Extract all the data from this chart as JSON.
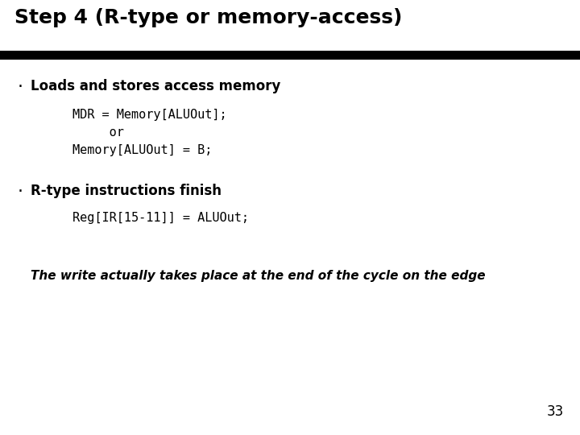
{
  "title": "Step 4 (R-type or memory-access)",
  "background_color": "#ffffff",
  "title_color": "#000000",
  "title_fontsize": 18,
  "separator_color": "#000000",
  "bullet1_text": "Loads and stores access memory",
  "bullet1_fontsize": 12,
  "code1_lines": [
    "MDR = Memory[ALUOut];",
    "     or",
    "Memory[ALUOut] = B;"
  ],
  "code1_fontsize": 11,
  "bullet2_text": "R-type instructions finish",
  "bullet2_fontsize": 12,
  "code2_lines": [
    "Reg[IR[15-11]] = ALUOut;"
  ],
  "code2_fontsize": 11,
  "note_text": "The write actually takes place at the end of the cycle on the edge",
  "note_fontsize": 11,
  "page_number": "33",
  "page_number_fontsize": 12
}
